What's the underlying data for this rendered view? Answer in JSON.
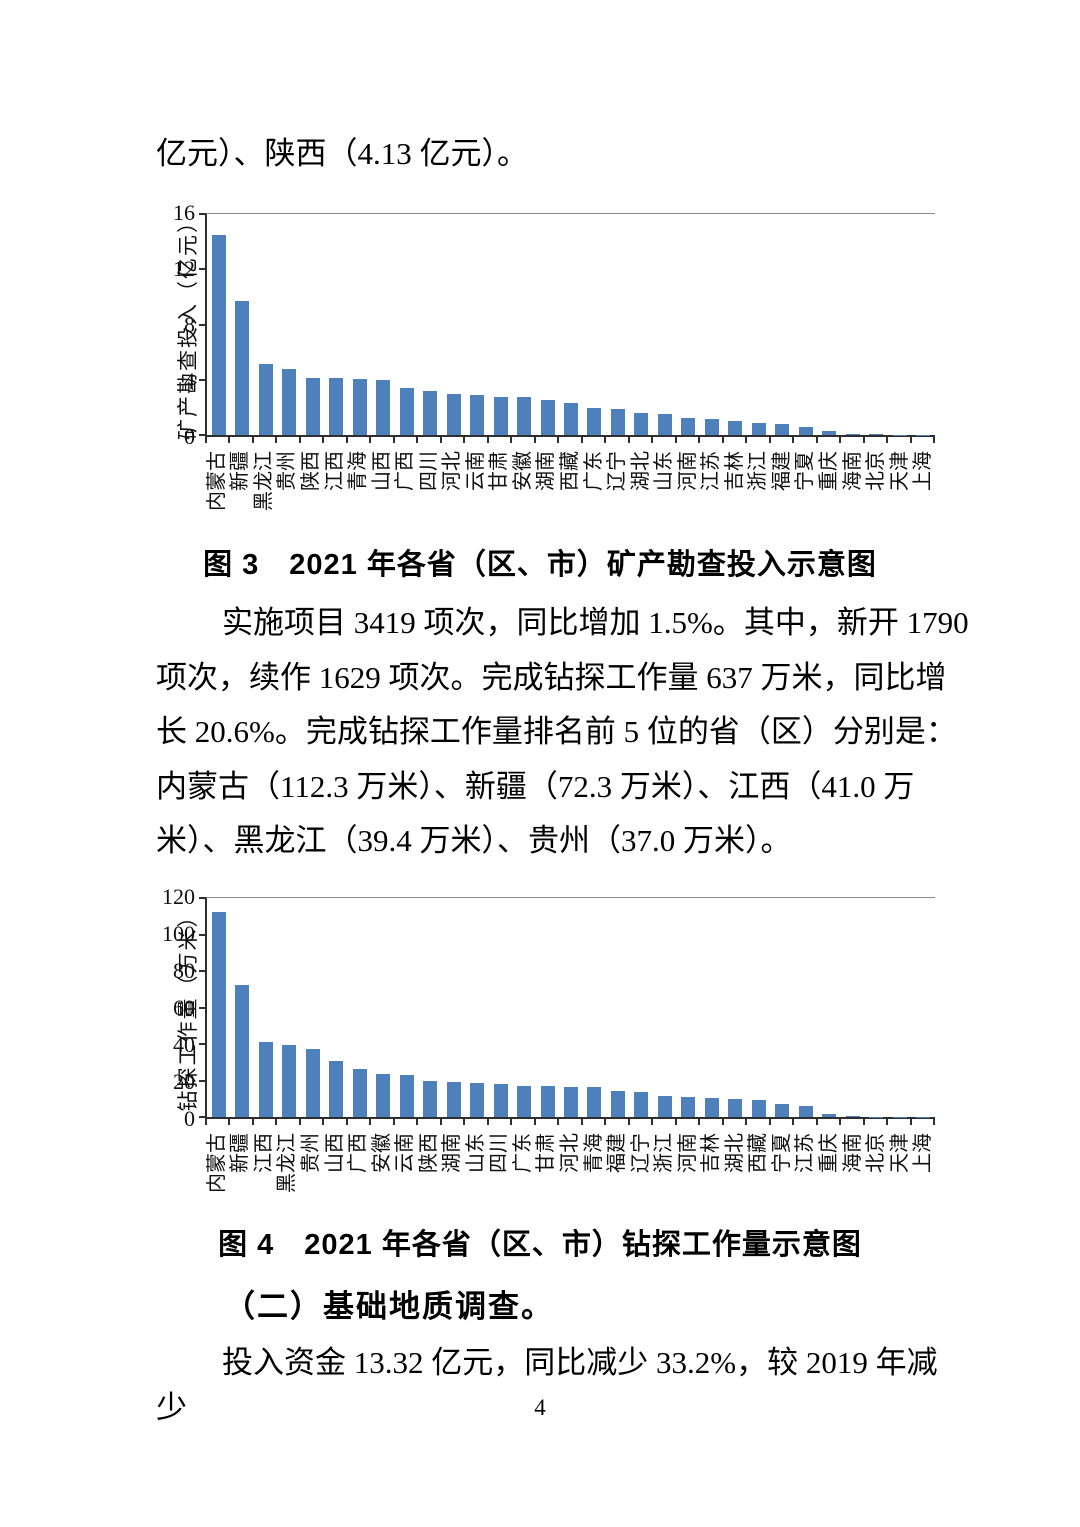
{
  "texts": {
    "top_paragraph": "亿元）、陕西（4.13 亿元）。",
    "caption3": "图 3　2021 年各省（区、市）矿产勘查投入示意图",
    "para1_lines": [
      "实施项目 3419 项次，同比增加 1.5%。其中，新开 1790",
      "项次，续作 1629 项次。完成钻探工作量 637 万米，同比增",
      "长 20.6%。完成钻探工作量排名前 5 位的省（区）分别是：",
      "内蒙古（112.3 万米）、新疆（72.3 万米）、江西（41.0 万",
      "米）、黑龙江（39.4 万米）、贵州（37.0 万米）。"
    ],
    "caption4": "图 4　2021 年各省（区、市）钻探工作量示意图",
    "heading2": "（二）基础地质调查。",
    "para2": "投入资金 13.32 亿元，同比减少 33.2%，较 2019 年减少",
    "page_number": "4"
  },
  "colors": {
    "bar": "#4E81BB",
    "axis": "#2e2e2e",
    "plot_top_border": "#8a8a8a",
    "text": "#000000"
  },
  "chart_data": [
    {
      "type": "bar",
      "title": "2021 年各省（区、市）矿产勘查投入示意图",
      "xlabel": "",
      "ylabel": "矿产勘查投入（亿元）",
      "ylim": [
        0,
        16
      ],
      "yticks": [
        0,
        4,
        8,
        12,
        16
      ],
      "grid": false,
      "legend_position": "none",
      "bar_color": "#4E81BB",
      "categories": [
        "内蒙古",
        "新疆",
        "黑龙江",
        "贵州",
        "陕西",
        "江西",
        "青海",
        "山西",
        "广西",
        "四川",
        "河北",
        "云南",
        "甘肃",
        "安徽",
        "湖南",
        "西藏",
        "广东",
        "辽宁",
        "湖北",
        "山东",
        "河南",
        "江苏",
        "吉林",
        "浙江",
        "福建",
        "宁夏",
        "重庆",
        "海南",
        "北京",
        "天津",
        "上海"
      ],
      "values": [
        14.47,
        9.67,
        5.11,
        4.79,
        4.13,
        4.1,
        4.03,
        4.01,
        3.4,
        3.21,
        3.0,
        2.88,
        2.76,
        2.72,
        2.55,
        2.31,
        1.96,
        1.88,
        1.61,
        1.54,
        1.25,
        1.13,
        1.04,
        0.9,
        0.83,
        0.55,
        0.31,
        0.1,
        0.05,
        0.02,
        0.02
      ]
    },
    {
      "type": "bar",
      "title": "2021 年各省（区、市）钻探工作量示意图",
      "xlabel": "",
      "ylabel": "钻探工作量（万米）",
      "ylim": [
        0,
        120
      ],
      "yticks": [
        0,
        20,
        40,
        60,
        80,
        100,
        120
      ],
      "grid": false,
      "legend_position": "none",
      "bar_color": "#4E81BB",
      "categories": [
        "内蒙古",
        "新疆",
        "江西",
        "黑龙江",
        "贵州",
        "山西",
        "广西",
        "安徽",
        "云南",
        "陕西",
        "湖南",
        "山东",
        "四川",
        "广东",
        "甘肃",
        "河北",
        "青海",
        "福建",
        "辽宁",
        "浙江",
        "河南",
        "吉林",
        "湖北",
        "西藏",
        "宁夏",
        "江苏",
        "重庆",
        "海南",
        "北京",
        "天津",
        "上海"
      ],
      "values": [
        112.3,
        72.3,
        41.0,
        39.4,
        37.0,
        30.5,
        26.2,
        23.3,
        23.0,
        19.8,
        19.3,
        18.6,
        18.2,
        17.2,
        17.0,
        16.6,
        16.3,
        14.4,
        13.5,
        11.7,
        11.2,
        10.4,
        10.0,
        9.5,
        7.2,
        6.3,
        1.4,
        0.4,
        0.1,
        0.05,
        0.05
      ]
    }
  ]
}
